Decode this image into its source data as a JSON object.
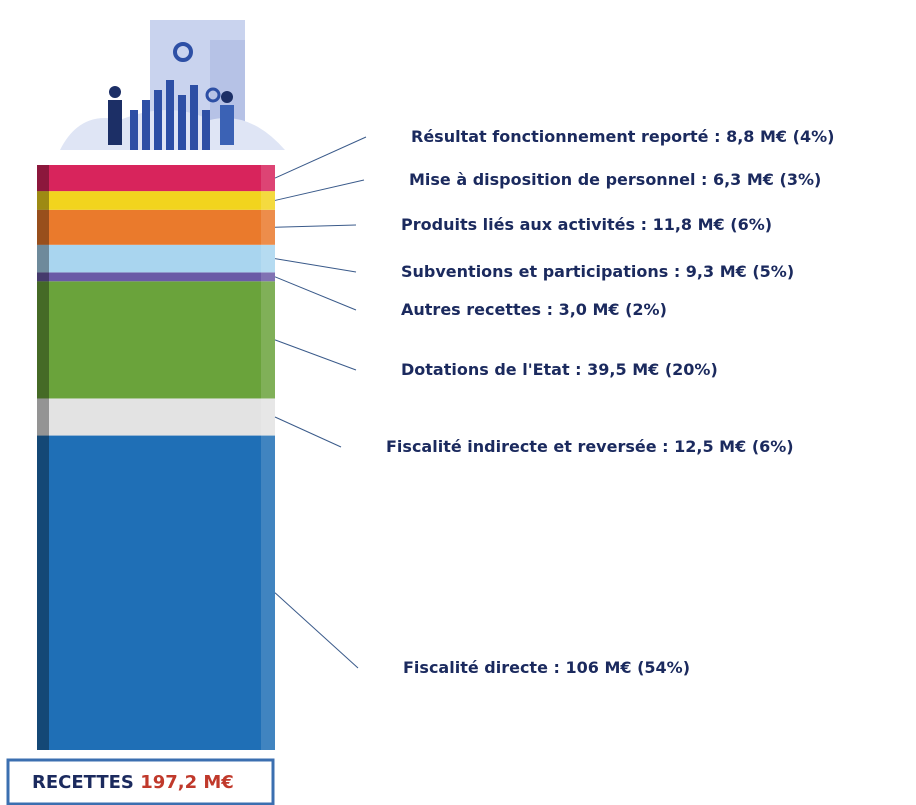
{
  "chart_data": {
    "type": "stacked_column",
    "total_title": "RECETTES",
    "total": 197.2,
    "total_label": "197,2 M€",
    "series": [
      {
        "name": "Résultat fonctionnement reporté :",
        "color": "#d8245c",
        "values": [
          8.8
        ],
        "value_labels": [
          "8,8 M€"
        ],
        "share_labels": [
          "(4%)"
        ]
      },
      {
        "name": "Mise à disposition de personnel :",
        "color": "#f2d41e",
        "values": [
          6.3
        ],
        "value_labels": [
          "6,3 M€"
        ],
        "share_labels": [
          "(3%)"
        ]
      },
      {
        "name": "Produits liés aux activités :",
        "color": "#ea7a2c",
        "values": [
          11.8
        ],
        "value_labels": [
          "11,8 M€"
        ],
        "share_labels": [
          "(6%)"
        ]
      },
      {
        "name": "Subventions et participations :",
        "color": "#a9d5ef",
        "values": [
          9.3
        ],
        "value_labels": [
          "9,3 M€"
        ],
        "share_labels": [
          "(5%)"
        ]
      },
      {
        "name": "Autres recettes :",
        "color": "#6a5aa6",
        "values": [
          3.0
        ],
        "value_labels": [
          "3,0 M€"
        ],
        "share_labels": [
          "(2%)"
        ]
      },
      {
        "name": "Dotations de l'Etat :",
        "color": "#6aa33b",
        "values": [
          39.5
        ],
        "value_labels": [
          "39,5 M€"
        ],
        "share_labels": [
          "(20%)"
        ]
      },
      {
        "name": "Fiscalité indirecte et reversée :",
        "color": "#e3e3e3",
        "values": [
          12.5
        ],
        "value_labels": [
          "12,5 M€"
        ],
        "share_labels": [
          "(6%)"
        ]
      },
      {
        "name": "Fiscalité directe :",
        "color": "#1f6fb6",
        "values": [
          106
        ],
        "value_labels": [
          "106 M€"
        ],
        "share_labels": [
          "(54%)"
        ]
      }
    ]
  }
}
